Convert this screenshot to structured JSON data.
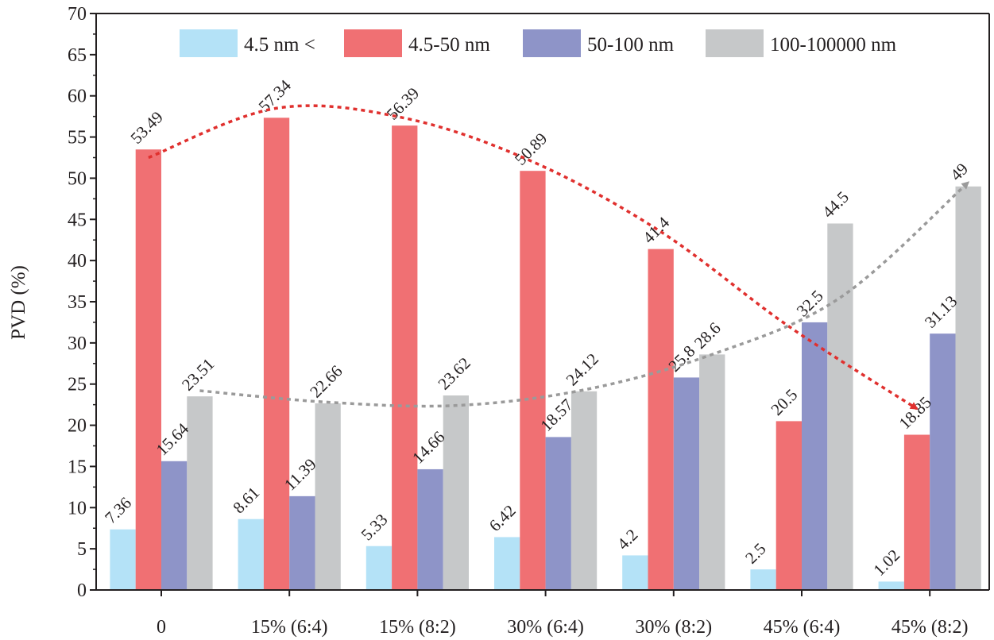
{
  "chart_data": {
    "type": "bar",
    "categories": [
      "0",
      "15% (6:4)",
      "15% (8:2)",
      "30% (6:4)",
      "30% (8:2)",
      "45% (6:4)",
      "45% (8:2)"
    ],
    "series": [
      {
        "name": "4.5 nm <",
        "color": "#b4e2f7",
        "values": [
          7.36,
          8.61,
          5.33,
          6.42,
          4.2,
          2.5,
          1.02
        ],
        "labels": [
          "7.36",
          "8.61",
          "5.33",
          "6.42",
          "4.2",
          "2.5",
          "1.02"
        ]
      },
      {
        "name": "4.5-50 nm",
        "color": "#f07073",
        "values": [
          53.49,
          57.34,
          56.39,
          50.89,
          41.4,
          20.5,
          18.85
        ],
        "labels": [
          "53.49",
          "57.34",
          "56.39",
          "50.89",
          "41.4",
          "20.5",
          "18.85"
        ]
      },
      {
        "name": "50-100 nm",
        "color": "#8e94c8",
        "values": [
          15.64,
          11.39,
          14.66,
          18.57,
          25.8,
          32.5,
          31.13
        ],
        "labels": [
          "15.64",
          "11.39",
          "14.66",
          "18.57",
          "25.8",
          "32.5",
          "31.13"
        ]
      },
      {
        "name": "100-100000 nm",
        "color": "#c6c8c9",
        "values": [
          23.51,
          22.66,
          23.62,
          24.12,
          28.6,
          44.5,
          49
        ],
        "labels": [
          "23.51",
          "22.66",
          "23.62",
          "24.12",
          "28.6",
          "44.5",
          "49"
        ]
      }
    ],
    "xlabel": "",
    "ylabel": "PVD (%)",
    "ylim": [
      0,
      70
    ],
    "yticks": [
      "0",
      "5",
      "10",
      "15",
      "20",
      "25",
      "30",
      "35",
      "40",
      "45",
      "50",
      "55",
      "60",
      "65",
      "70"
    ],
    "legend_position": "top",
    "grid": false,
    "trend_arrows": [
      {
        "series": "4.5-50 nm",
        "color": "#e0302e",
        "style": "dashed",
        "direction": "decreasing",
        "points": [
          {
            "x": "0",
            "y": 52.5
          },
          {
            "x": "15% (6:4)",
            "y": 58.5
          },
          {
            "x": "15% (8:2)",
            "y": 57.3
          },
          {
            "x": "30% (6:4)",
            "y": 52
          },
          {
            "x": "30% (8:2)",
            "y": 43.5
          },
          {
            "x": "45% (6:4)",
            "y": 32
          },
          {
            "x": "45% (8:2)",
            "y": 22
          }
        ]
      },
      {
        "series": "100-100000 nm",
        "color": "#9a9a9a",
        "style": "dashed",
        "direction": "increasing",
        "points": [
          {
            "x": "0",
            "y": 24.2
          },
          {
            "x": "15% (6:4)",
            "y": 22.8
          },
          {
            "x": "15% (8:2)",
            "y": 22.4
          },
          {
            "x": "30% (6:4)",
            "y": 24.3
          },
          {
            "x": "30% (8:2)",
            "y": 28.6
          },
          {
            "x": "45% (6:4)",
            "y": 35.5
          },
          {
            "x": "45% (8:2)",
            "y": 49.5
          }
        ]
      }
    ]
  }
}
